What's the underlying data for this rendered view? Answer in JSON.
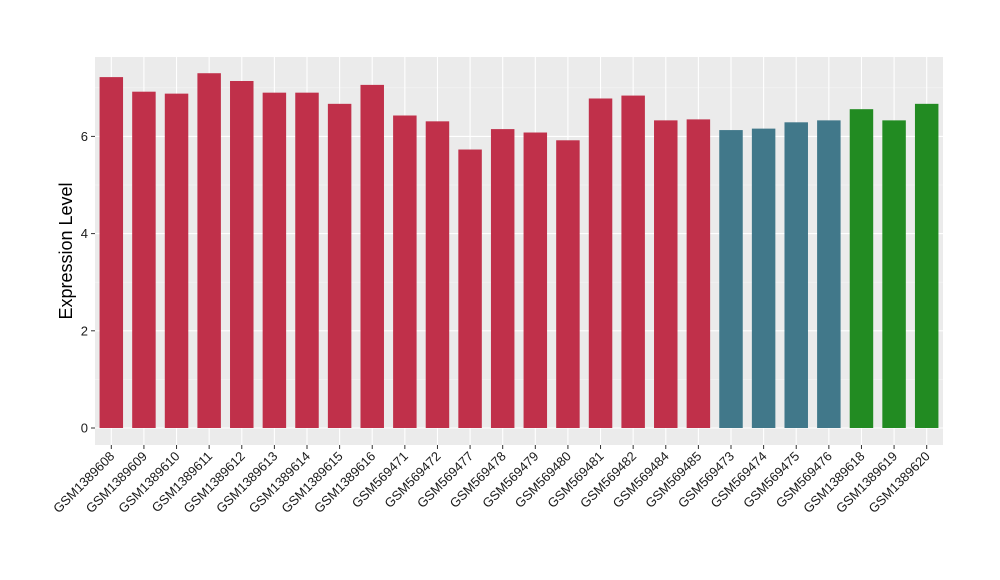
{
  "chart_data": {
    "type": "bar",
    "title": "",
    "xlabel": "",
    "ylabel": "Expression Level",
    "ylim": [
      -0.3,
      7.6
    ],
    "yticks": [
      0,
      2,
      4,
      6
    ],
    "ytick_labels": [
      "0",
      "2",
      "4",
      "6"
    ],
    "grid": true,
    "legend": "none",
    "background": "#ebebeb",
    "categories": [
      "GSM1389608",
      "GSM1389609",
      "GSM1389610",
      "GSM1389611",
      "GSM1389612",
      "GSM1389613",
      "GSM1389614",
      "GSM1389615",
      "GSM1389616",
      "GSM569471",
      "GSM569472",
      "GSM569477",
      "GSM569478",
      "GSM569479",
      "GSM569480",
      "GSM569481",
      "GSM569482",
      "GSM569484",
      "GSM569485",
      "GSM569473",
      "GSM569474",
      "GSM569475",
      "GSM569476",
      "GSM1389618",
      "GSM1389619",
      "GSM1389620"
    ],
    "values": [
      7.22,
      6.92,
      6.88,
      7.3,
      7.14,
      6.9,
      6.9,
      6.67,
      7.06,
      6.43,
      6.31,
      5.73,
      6.15,
      6.08,
      5.92,
      6.78,
      6.84,
      6.33,
      6.35,
      6.13,
      6.16,
      6.29,
      6.33,
      6.56,
      6.33,
      6.67
    ],
    "colors": [
      "#c0304a",
      "#c0304a",
      "#c0304a",
      "#c0304a",
      "#c0304a",
      "#c0304a",
      "#c0304a",
      "#c0304a",
      "#c0304a",
      "#c0304a",
      "#c0304a",
      "#c0304a",
      "#c0304a",
      "#c0304a",
      "#c0304a",
      "#c0304a",
      "#c0304a",
      "#c0304a",
      "#c0304a",
      "#41788a",
      "#41788a",
      "#41788a",
      "#41788a",
      "#228b22",
      "#228b22",
      "#228b22"
    ]
  }
}
